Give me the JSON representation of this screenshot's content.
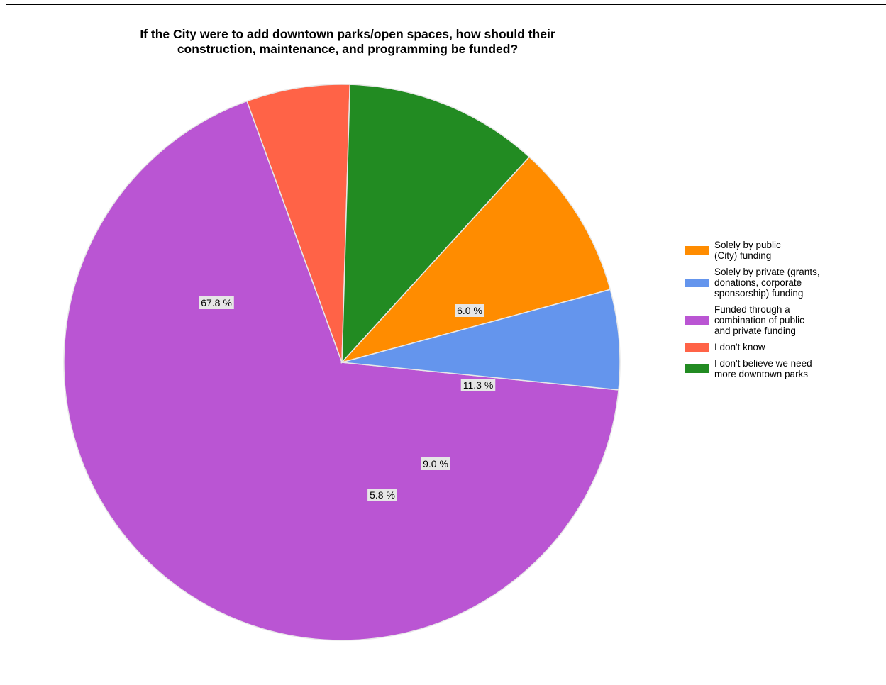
{
  "chart_data": {
    "type": "pie",
    "title_lines": [
      "If the City were to add downtown parks/open spaces, how should their",
      "construction, maintenance, and programming be funded?"
    ],
    "slices": [
      {
        "legend_lines": [
          "Solely by public",
          "(City) funding"
        ],
        "value": 9.0,
        "label": "9.0 %",
        "color": "#ff8c00"
      },
      {
        "legend_lines": [
          "Solely by private (grants,",
          "donations, corporate",
          "sponsorship) funding"
        ],
        "value": 5.8,
        "label": "5.8 %",
        "color": "#6495ed"
      },
      {
        "legend_lines": [
          "Funded through a",
          "combination of public",
          "and private funding"
        ],
        "value": 67.8,
        "label": "67.8 %",
        "color": "#ba55d3"
      },
      {
        "legend_lines": [
          "I don't know"
        ],
        "value": 6.0,
        "label": "6.0 %",
        "color": "#ff6347"
      },
      {
        "legend_lines": [
          "I don't believe we need",
          "more downtown parks"
        ],
        "value": 11.3,
        "label": "11.3 %",
        "color": "#228b22"
      }
    ],
    "legend_position": "right"
  }
}
